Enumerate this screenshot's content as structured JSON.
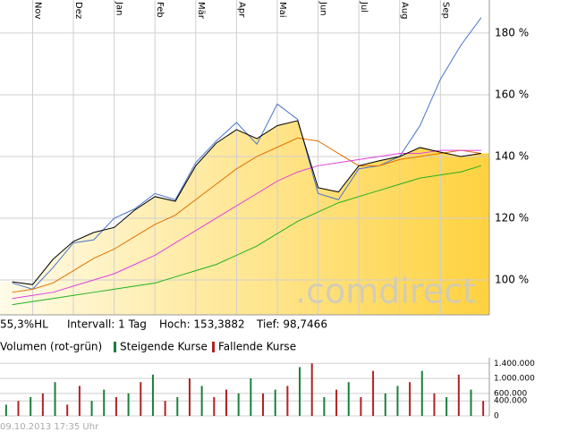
{
  "chart_data": [
    {
      "type": "line",
      "xticks": [
        {
          "value": 1,
          "label": "Nov"
        },
        {
          "value": 3,
          "label": "Dez"
        },
        {
          "value": 5,
          "label": "Jan"
        },
        {
          "value": 7,
          "label": "Feb"
        },
        {
          "value": 9,
          "label": "Mär"
        },
        {
          "value": 11,
          "label": "Apr"
        },
        {
          "value": 13,
          "label": "Mai"
        },
        {
          "value": 15,
          "label": "Jun"
        },
        {
          "value": 17,
          "label": "Jul"
        },
        {
          "value": 19,
          "label": "Aug"
        },
        {
          "value": 21,
          "label": "Sep"
        }
      ],
      "xlim": [
        -0.6,
        23.4
      ],
      "ylim": [
        88.7,
        190.7
      ],
      "yticks": [
        {
          "value": 100,
          "label": "100 %"
        },
        {
          "value": 120,
          "label": "120 %"
        },
        {
          "value": 140,
          "label": "140 %"
        },
        {
          "value": 160,
          "label": "160 %"
        },
        {
          "value": 180,
          "label": "180 %"
        }
      ],
      "grid": true,
      "series": [
        {
          "color": "#000000",
          "area": true,
          "values": [
            99.4,
            98.5,
            106.7,
            112.5,
            115.4,
            117,
            122.6,
            127,
            125.5,
            137,
            144.3,
            148.7,
            145.8,
            150,
            151.6,
            129.9,
            128.5,
            137,
            138.6,
            140,
            142.9,
            141.4,
            140,
            141
          ]
        },
        {
          "color": "#4a74c9",
          "values": [
            99,
            97,
            104,
            112,
            113,
            120,
            123,
            128,
            126,
            138,
            145,
            151,
            144,
            157,
            152,
            128,
            126,
            136,
            137,
            140,
            150,
            165,
            176,
            185
          ]
        },
        {
          "color": "#e07000",
          "values": [
            96,
            97,
            99,
            103,
            107,
            110,
            114,
            118,
            121,
            126,
            131,
            136,
            140,
            143,
            146,
            145,
            141,
            137,
            137,
            139,
            140,
            141,
            142,
            141
          ]
        },
        {
          "color": "#e040e0",
          "values": [
            94,
            95,
            96,
            98,
            100,
            102,
            105,
            108,
            112,
            116,
            120,
            124,
            128,
            132,
            135,
            137,
            138,
            139,
            140,
            141,
            141,
            142,
            142,
            142
          ]
        },
        {
          "color": "#20b020",
          "values": [
            92,
            93,
            94,
            95,
            96,
            97,
            98,
            99,
            101,
            103,
            105,
            108,
            111,
            115,
            119,
            122,
            125,
            127,
            129,
            131,
            133,
            134,
            135,
            137
          ]
        }
      ],
      "watermark": ".comdirect",
      "stats": [
        "55,3%HL",
        "Intervall: 1 Tag",
        "Hoch: 153,3882",
        "Tief: 98,7466"
      ]
    },
    {
      "type": "bar",
      "title": "Volumen (rot-grün)",
      "ylim": [
        0,
        1550000
      ],
      "yticks": [
        0,
        {
          "value": 400000,
          "label": "400.000"
        },
        {
          "value": 600000,
          "label": "600.000"
        },
        {
          "value": 1000000,
          "label": "1.000.000"
        },
        {
          "value": 1400000,
          "label": "1.400.000"
        }
      ],
      "series": [
        {
          "name": "Steigende Kurse",
          "color": "#1a7f3c",
          "values": [
            300000,
            null,
            500000,
            null,
            900000,
            null,
            null,
            400000,
            700000,
            null,
            600000,
            null,
            1100000,
            null,
            500000,
            null,
            800000,
            null,
            null,
            600000,
            1000000,
            null,
            700000,
            null,
            1300000,
            null,
            500000,
            null,
            900000,
            null,
            null,
            600000,
            800000,
            null,
            1200000,
            null,
            500000,
            null,
            700000,
            null
          ]
        },
        {
          "name": "Fallende Kurse",
          "color": "#b22222",
          "values": [
            null,
            400000,
            null,
            600000,
            null,
            300000,
            800000,
            null,
            null,
            500000,
            null,
            900000,
            null,
            400000,
            null,
            1000000,
            null,
            500000,
            700000,
            null,
            null,
            600000,
            null,
            800000,
            null,
            1400000,
            null,
            700000,
            null,
            500000,
            1200000,
            null,
            null,
            900000,
            null,
            600000,
            null,
            1100000,
            null,
            400000
          ]
        }
      ]
    }
  ],
  "footer": "09.10.2013 17:35 Uhr"
}
